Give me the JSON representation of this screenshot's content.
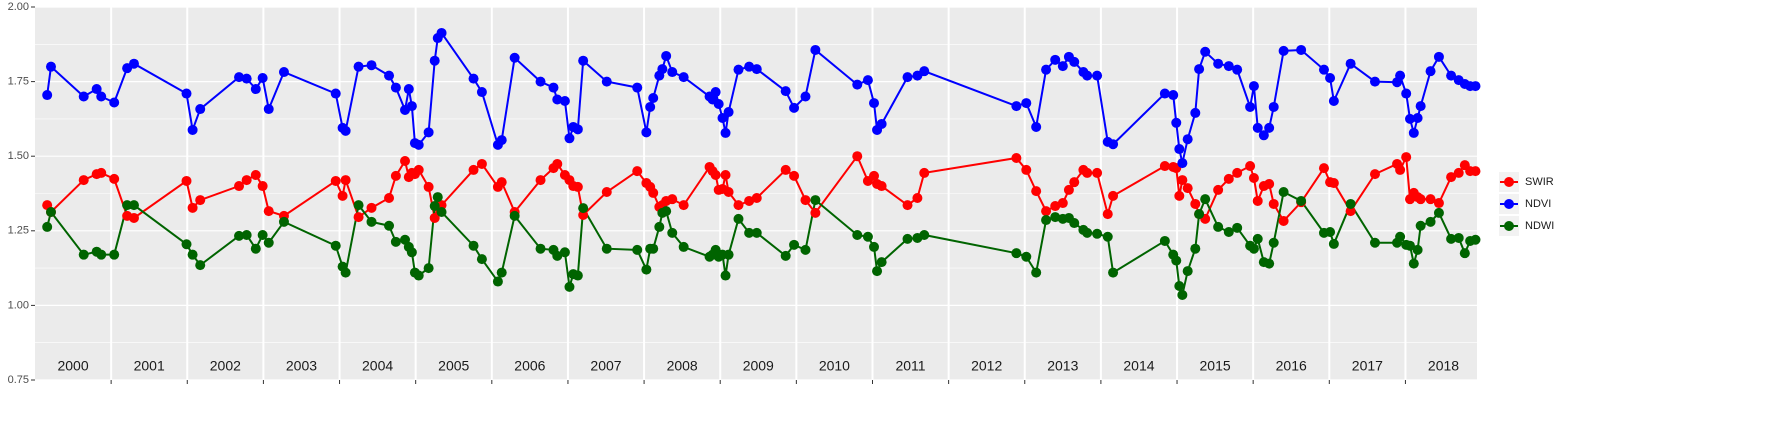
{
  "chart_data": {
    "type": "line",
    "x": [
      2000.16,
      2000.21,
      2000.64,
      2000.81,
      2000.87,
      2001.04,
      2001.21,
      2001.3,
      2001.99,
      2002.07,
      2002.17,
      2002.68,
      2002.78,
      2002.9,
      2002.99,
      2003.07,
      2003.27,
      2003.95,
      2004.04,
      2004.08,
      2004.25,
      2004.42,
      2004.65,
      2004.74,
      2004.86,
      2004.91,
      2004.95,
      2004.99,
      2005.04,
      2005.17,
      2005.25,
      2005.29,
      2005.34,
      2005.76,
      2005.87,
      2006.08,
      2006.13,
      2006.3,
      2006.64,
      2006.81,
      2006.86,
      2006.96,
      2007.02,
      2007.07,
      2007.13,
      2007.2,
      2007.51,
      2007.91,
      2008.03,
      2008.08,
      2008.12,
      2008.2,
      2008.24,
      2008.29,
      2008.37,
      2008.52,
      2008.86,
      2008.9,
      2008.94,
      2008.98,
      2009.03,
      2009.07,
      2009.11,
      2009.24,
      2009.38,
      2009.48,
      2009.86,
      2009.97,
      2010.12,
      2010.25,
      2010.8,
      2010.94,
      2011.02,
      2011.06,
      2011.12,
      2011.46,
      2011.59,
      2011.68,
      2012.89,
      2013.02,
      2013.15,
      2013.28,
      2013.4,
      2013.5,
      2013.58,
      2013.65,
      2013.77,
      2013.82,
      2013.95,
      2014.09,
      2014.16,
      2014.84,
      2014.95,
      2014.99,
      2015.03,
      2015.07,
      2015.14,
      2015.24,
      2015.29,
      2015.37,
      2015.54,
      2015.68,
      2015.79,
      2015.96,
      2016.01,
      2016.06,
      2016.14,
      2016.21,
      2016.27,
      2016.4,
      2016.63,
      2016.93,
      2017.01,
      2017.06,
      2017.28,
      2017.6,
      2017.89,
      2017.93,
      2018.01,
      2018.06,
      2018.11,
      2018.16,
      2018.2,
      2018.33,
      2018.44,
      2018.6,
      2018.7,
      2018.78,
      2018.85,
      2018.92
    ],
    "series": [
      {
        "name": "SWIR",
        "color": "#ff0000",
        "values": [
          1.336,
          1.313,
          1.42,
          1.44,
          1.444,
          1.424,
          1.3,
          1.293,
          1.417,
          1.327,
          1.353,
          1.4,
          1.42,
          1.437,
          1.4,
          1.316,
          1.3,
          1.417,
          1.367,
          1.42,
          1.296,
          1.327,
          1.36,
          1.434,
          1.484,
          1.43,
          1.444,
          1.44,
          1.454,
          1.397,
          1.293,
          1.333,
          1.336,
          1.454,
          1.474,
          1.397,
          1.413,
          1.313,
          1.42,
          1.46,
          1.474,
          1.437,
          1.42,
          1.4,
          1.397,
          1.303,
          1.38,
          1.45,
          1.41,
          1.397,
          1.377,
          1.33,
          1.336,
          1.35,
          1.356,
          1.336,
          1.464,
          1.45,
          1.437,
          1.387,
          1.39,
          1.437,
          1.38,
          1.336,
          1.35,
          1.36,
          1.454,
          1.434,
          1.353,
          1.31,
          1.5,
          1.417,
          1.434,
          1.407,
          1.4,
          1.336,
          1.36,
          1.444,
          1.494,
          1.454,
          1.383,
          1.316,
          1.333,
          1.343,
          1.387,
          1.413,
          1.454,
          1.444,
          1.444,
          1.306,
          1.367,
          1.467,
          1.464,
          1.46,
          1.367,
          1.42,
          1.393,
          1.34,
          1.306,
          1.29,
          1.387,
          1.424,
          1.444,
          1.467,
          1.427,
          1.35,
          1.4,
          1.407,
          1.34,
          1.283,
          1.346,
          1.46,
          1.413,
          1.41,
          1.316,
          1.44,
          1.474,
          1.454,
          1.497,
          1.356,
          1.377,
          1.363,
          1.356,
          1.356,
          1.343,
          1.43,
          1.444,
          1.47,
          1.45,
          1.45
        ]
      },
      {
        "name": "NDVI",
        "color": "#0000ff",
        "values": [
          1.705,
          1.8,
          1.7,
          1.725,
          1.7,
          1.68,
          1.795,
          1.81,
          1.71,
          1.588,
          1.658,
          1.765,
          1.76,
          1.725,
          1.762,
          1.658,
          1.782,
          1.71,
          1.595,
          1.585,
          1.8,
          1.805,
          1.77,
          1.73,
          1.655,
          1.725,
          1.668,
          1.544,
          1.538,
          1.58,
          1.82,
          1.896,
          1.913,
          1.76,
          1.715,
          1.538,
          1.554,
          1.83,
          1.75,
          1.73,
          1.69,
          1.685,
          1.56,
          1.598,
          1.59,
          1.82,
          1.75,
          1.73,
          1.58,
          1.665,
          1.695,
          1.77,
          1.792,
          1.836,
          1.782,
          1.765,
          1.7,
          1.69,
          1.715,
          1.675,
          1.628,
          1.578,
          1.648,
          1.79,
          1.8,
          1.792,
          1.718,
          1.662,
          1.7,
          1.856,
          1.74,
          1.755,
          1.678,
          1.588,
          1.608,
          1.765,
          1.77,
          1.785,
          1.668,
          1.678,
          1.598,
          1.79,
          1.823,
          1.802,
          1.833,
          1.816,
          1.782,
          1.77,
          1.77,
          1.548,
          1.54,
          1.71,
          1.705,
          1.612,
          1.524,
          1.477,
          1.557,
          1.645,
          1.792,
          1.85,
          1.81,
          1.802,
          1.79,
          1.665,
          1.735,
          1.595,
          1.57,
          1.595,
          1.665,
          1.853,
          1.856,
          1.79,
          1.762,
          1.685,
          1.81,
          1.75,
          1.748,
          1.77,
          1.71,
          1.625,
          1.578,
          1.628,
          1.668,
          1.785,
          1.833,
          1.77,
          1.755,
          1.742,
          1.735,
          1.735
        ]
      },
      {
        "name": "NDWI",
        "color": "#006400",
        "values": [
          1.263,
          1.313,
          1.17,
          1.18,
          1.17,
          1.17,
          1.336,
          1.336,
          1.205,
          1.17,
          1.135,
          1.233,
          1.236,
          1.19,
          1.236,
          1.21,
          1.28,
          1.2,
          1.13,
          1.11,
          1.336,
          1.28,
          1.267,
          1.213,
          1.22,
          1.196,
          1.178,
          1.11,
          1.1,
          1.125,
          1.333,
          1.363,
          1.313,
          1.2,
          1.155,
          1.08,
          1.11,
          1.3,
          1.19,
          1.186,
          1.166,
          1.178,
          1.062,
          1.105,
          1.1,
          1.326,
          1.19,
          1.186,
          1.12,
          1.19,
          1.19,
          1.263,
          1.31,
          1.316,
          1.243,
          1.196,
          1.163,
          1.17,
          1.186,
          1.163,
          1.17,
          1.1,
          1.17,
          1.29,
          1.243,
          1.243,
          1.166,
          1.203,
          1.186,
          1.353,
          1.236,
          1.23,
          1.196,
          1.115,
          1.145,
          1.223,
          1.226,
          1.236,
          1.175,
          1.163,
          1.11,
          1.286,
          1.296,
          1.29,
          1.293,
          1.276,
          1.253,
          1.243,
          1.24,
          1.23,
          1.11,
          1.216,
          1.17,
          1.15,
          1.065,
          1.035,
          1.115,
          1.19,
          1.306,
          1.356,
          1.263,
          1.246,
          1.26,
          1.2,
          1.19,
          1.223,
          1.145,
          1.14,
          1.21,
          1.38,
          1.35,
          1.243,
          1.246,
          1.206,
          1.34,
          1.21,
          1.21,
          1.23,
          1.203,
          1.2,
          1.14,
          1.186,
          1.267,
          1.28,
          1.31,
          1.223,
          1.226,
          1.175,
          1.216,
          1.22
        ]
      }
    ],
    "xlim": [
      2000,
      2018.94
    ],
    "xticks": [
      {
        "value": 2000.5,
        "label": "2000"
      },
      {
        "value": 2001.5,
        "label": "2001"
      },
      {
        "value": 2002.5,
        "label": "2002"
      },
      {
        "value": 2003.5,
        "label": "2003"
      },
      {
        "value": 2004.5,
        "label": "2004"
      },
      {
        "value": 2005.5,
        "label": "2005"
      },
      {
        "value": 2006.5,
        "label": "2006"
      },
      {
        "value": 2007.5,
        "label": "2007"
      },
      {
        "value": 2008.5,
        "label": "2008"
      },
      {
        "value": 2009.5,
        "label": "2009"
      },
      {
        "value": 2010.5,
        "label": "2010"
      },
      {
        "value": 2011.5,
        "label": "2011"
      },
      {
        "value": 2012.5,
        "label": "2012"
      },
      {
        "value": 2013.5,
        "label": "2013"
      },
      {
        "value": 2014.5,
        "label": "2014"
      },
      {
        "value": 2015.5,
        "label": "2015"
      },
      {
        "value": 2016.5,
        "label": "2016"
      },
      {
        "value": 2017.5,
        "label": "2017"
      },
      {
        "value": 2018.5,
        "label": "2018"
      }
    ],
    "x_breaks": [
      2001,
      2002,
      2003,
      2004,
      2005,
      2006,
      2007,
      2008,
      2009,
      2010,
      2011,
      2012,
      2013,
      2014,
      2015,
      2016,
      2017,
      2018
    ],
    "ylim": [
      0.75,
      2.0
    ],
    "yticks": [
      {
        "value": 0.75,
        "label": "0.75"
      },
      {
        "value": 1.0,
        "label": "1.00"
      },
      {
        "value": 1.25,
        "label": "1.25"
      },
      {
        "value": 1.5,
        "label": "1.50"
      },
      {
        "value": 1.75,
        "label": "1.75"
      },
      {
        "value": 2.0,
        "label": "2.00"
      }
    ],
    "minor_yticks": [
      0.875,
      1.125,
      1.375,
      1.625,
      1.875
    ],
    "grid": true,
    "legend": "right"
  }
}
